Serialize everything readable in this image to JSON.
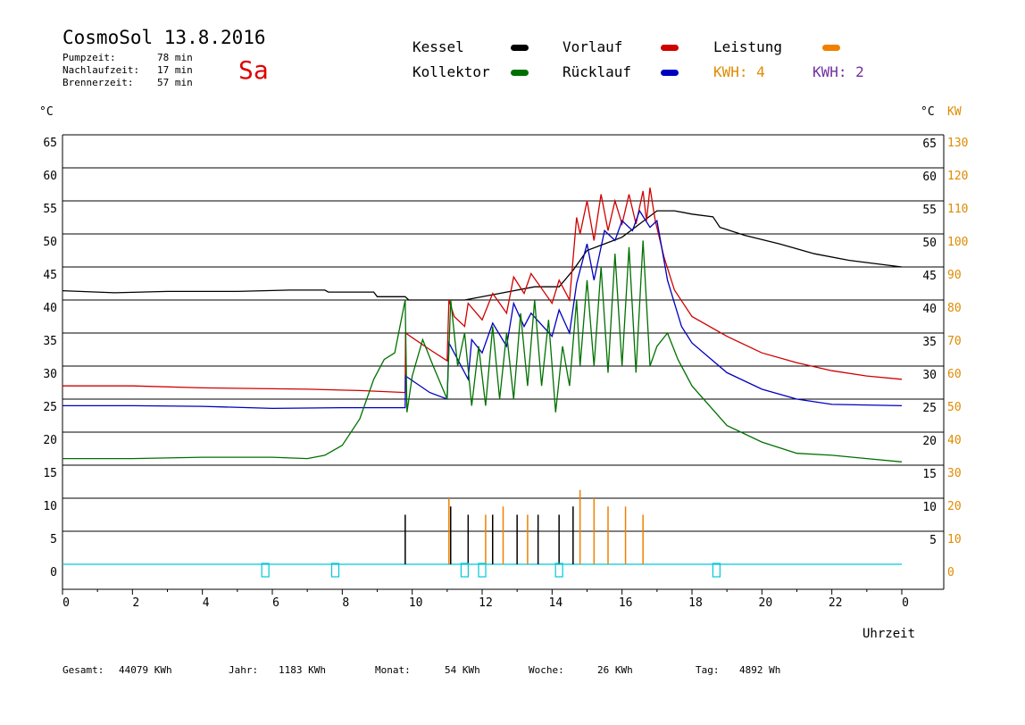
{
  "header": {
    "title": "CosmoSol 13.8.2016",
    "stats": [
      {
        "label": "Pumpzeit:",
        "value": "78 min"
      },
      {
        "label": "Nachlaufzeit:",
        "value": "17 min"
      },
      {
        "label": "Brennerzeit:",
        "value": "57 min"
      }
    ],
    "day": "Sa"
  },
  "legend": {
    "kessel": "Kessel",
    "vorlauf": "Vorlauf",
    "leistung": "Leistung",
    "kollektor": "Kollektor",
    "ruecklauf": "Rücklauf",
    "kwh_orange": "KWH: 4",
    "kwh_purple": "KWH: 2"
  },
  "colors": {
    "kessel": "#000000",
    "vorlauf": "#d00000",
    "leistung": "#f08000",
    "kollektor": "#007000",
    "ruecklauf": "#0000c0",
    "kwh_orange": "#e08a00",
    "kwh_purple": "#7030a0",
    "pump_markers": "#00c8d8"
  },
  "footer": [
    {
      "label": "Gesamt:",
      "value": "44079 KWh"
    },
    {
      "label": "Jahr:",
      "value": "1183 KWh"
    },
    {
      "label": "Monat:",
      "value": "54 KWh"
    },
    {
      "label": "Woche:",
      "value": "26 KWh"
    },
    {
      "label": "Tag:",
      "value": "4892 Wh"
    }
  ],
  "chart_data": {
    "type": "line",
    "title": "CosmoSol 13.8.2016",
    "xlabel": "Uhrzeit",
    "ylabel_left": "°C",
    "ylabel_right_temp": "°C",
    "ylabel_right_power": "KW",
    "xlim": [
      0,
      24
    ],
    "ylim": [
      0,
      65
    ],
    "x_ticks": [
      "0",
      "2",
      "4",
      "6",
      "8",
      "10",
      "12",
      "14",
      "16",
      "18",
      "20",
      "22",
      "0"
    ],
    "y_ticks_left": [
      "0",
      "5",
      "10",
      "15",
      "20",
      "25",
      "30",
      "35",
      "40",
      "45",
      "50",
      "55",
      "60",
      "65"
    ],
    "y_ticks_right_temp": [
      "5",
      "10",
      "15",
      "20",
      "25",
      "30",
      "35",
      "40",
      "45",
      "50",
      "55",
      "60",
      "65"
    ],
    "y_ticks_right_power": [
      "0",
      "10",
      "20",
      "30",
      "40",
      "50",
      "60",
      "70",
      "80",
      "90",
      "100",
      "110",
      "120",
      "130"
    ],
    "grid": true,
    "legend_position": "top",
    "series": [
      {
        "name": "Kessel",
        "color": "#000000",
        "points": [
          [
            0,
            41.4
          ],
          [
            1.5,
            41.1
          ],
          [
            3,
            41.3
          ],
          [
            5,
            41.3
          ],
          [
            6.5,
            41.5
          ],
          [
            7.5,
            41.5
          ],
          [
            7.6,
            41.2
          ],
          [
            8.9,
            41.2
          ],
          [
            9,
            40.5
          ],
          [
            9.8,
            40.5
          ],
          [
            9.9,
            40.0
          ],
          [
            11.5,
            40.0
          ],
          [
            12.5,
            41.0
          ],
          [
            13.5,
            42.0
          ],
          [
            14.2,
            42.0
          ],
          [
            14.6,
            44.5
          ],
          [
            15,
            47.5
          ],
          [
            15.5,
            48.5
          ],
          [
            16,
            49.5
          ],
          [
            16.5,
            51.5
          ],
          [
            17,
            53.5
          ],
          [
            17.5,
            53.5
          ],
          [
            18,
            53.0
          ],
          [
            18.6,
            52.6
          ],
          [
            18.8,
            51.0
          ],
          [
            19.5,
            49.8
          ],
          [
            20.5,
            48.5
          ],
          [
            21.5,
            47.0
          ],
          [
            22.5,
            46.0
          ],
          [
            24,
            45.0
          ]
        ]
      },
      {
        "name": "Vorlauf",
        "color": "#d00000",
        "points": [
          [
            0,
            27.0
          ],
          [
            2,
            27.0
          ],
          [
            4,
            26.7
          ],
          [
            7,
            26.5
          ],
          [
            8.5,
            26.3
          ],
          [
            9.8,
            26.0
          ],
          [
            9.81,
            35.0
          ],
          [
            10.5,
            32.5
          ],
          [
            11.0,
            30.8
          ],
          [
            11.05,
            40.0
          ],
          [
            11.2,
            37.5
          ],
          [
            11.5,
            36.0
          ],
          [
            11.6,
            39.5
          ],
          [
            12.0,
            37.0
          ],
          [
            12.3,
            41.0
          ],
          [
            12.7,
            38.0
          ],
          [
            12.9,
            43.5
          ],
          [
            13.2,
            41.0
          ],
          [
            13.4,
            44.0
          ],
          [
            14.0,
            39.5
          ],
          [
            14.2,
            43.0
          ],
          [
            14.5,
            40.0
          ],
          [
            14.7,
            52.5
          ],
          [
            14.8,
            50.0
          ],
          [
            15.0,
            55.0
          ],
          [
            15.2,
            49.0
          ],
          [
            15.4,
            56.0
          ],
          [
            15.6,
            50.5
          ],
          [
            15.8,
            55.0
          ],
          [
            16.0,
            51.5
          ],
          [
            16.2,
            56.0
          ],
          [
            16.4,
            51.5
          ],
          [
            16.6,
            56.5
          ],
          [
            16.7,
            52.0
          ],
          [
            16.8,
            57.0
          ],
          [
            16.95,
            52.0
          ],
          [
            17.2,
            46.5
          ],
          [
            17.5,
            41.5
          ],
          [
            18,
            37.5
          ],
          [
            19,
            34.5
          ],
          [
            20,
            32.0
          ],
          [
            21,
            30.5
          ],
          [
            22,
            29.3
          ],
          [
            23,
            28.5
          ],
          [
            24,
            28.0
          ]
        ]
      },
      {
        "name": "Rücklauf",
        "color": "#0000c0",
        "points": [
          [
            0,
            24.0
          ],
          [
            2,
            24.0
          ],
          [
            4,
            23.9
          ],
          [
            6,
            23.6
          ],
          [
            8,
            23.7
          ],
          [
            9.8,
            23.7
          ],
          [
            9.81,
            28.5
          ],
          [
            10.5,
            26.0
          ],
          [
            11.0,
            25.0
          ],
          [
            11.05,
            33.5
          ],
          [
            11.3,
            31.0
          ],
          [
            11.6,
            28.0
          ],
          [
            11.7,
            34.0
          ],
          [
            12.0,
            32.0
          ],
          [
            12.3,
            36.5
          ],
          [
            12.7,
            33.0
          ],
          [
            12.9,
            39.5
          ],
          [
            13.2,
            36.0
          ],
          [
            13.4,
            38.0
          ],
          [
            14.0,
            34.5
          ],
          [
            14.2,
            38.5
          ],
          [
            14.5,
            35.0
          ],
          [
            14.7,
            42.5
          ],
          [
            15.0,
            48.5
          ],
          [
            15.2,
            43.0
          ],
          [
            15.5,
            50.5
          ],
          [
            15.8,
            49.0
          ],
          [
            16.0,
            52.0
          ],
          [
            16.3,
            50.5
          ],
          [
            16.5,
            53.5
          ],
          [
            16.8,
            51.0
          ],
          [
            17.0,
            52.0
          ],
          [
            17.3,
            43.0
          ],
          [
            17.7,
            36.0
          ],
          [
            18,
            33.5
          ],
          [
            19,
            29.0
          ],
          [
            20,
            26.5
          ],
          [
            21,
            25.0
          ],
          [
            22,
            24.2
          ],
          [
            24,
            24.0
          ]
        ]
      },
      {
        "name": "Kollektor",
        "color": "#007000",
        "points": [
          [
            0,
            16.0
          ],
          [
            2,
            16.0
          ],
          [
            4,
            16.2
          ],
          [
            6,
            16.2
          ],
          [
            7,
            16.0
          ],
          [
            7.5,
            16.5
          ],
          [
            8,
            18.0
          ],
          [
            8.5,
            22.0
          ],
          [
            8.9,
            28.0
          ],
          [
            9.2,
            31.0
          ],
          [
            9.5,
            32.0
          ],
          [
            9.8,
            40.0
          ],
          [
            9.85,
            23.0
          ],
          [
            10.0,
            28.5
          ],
          [
            10.3,
            34.0
          ],
          [
            10.6,
            30.0
          ],
          [
            11.0,
            25.0
          ],
          [
            11.1,
            40.0
          ],
          [
            11.3,
            30.0
          ],
          [
            11.5,
            35.0
          ],
          [
            11.7,
            24.0
          ],
          [
            11.9,
            33.0
          ],
          [
            12.1,
            24.0
          ],
          [
            12.3,
            36.0
          ],
          [
            12.5,
            25.0
          ],
          [
            12.7,
            35.0
          ],
          [
            12.9,
            25.0
          ],
          [
            13.1,
            38.0
          ],
          [
            13.3,
            27.0
          ],
          [
            13.5,
            40.0
          ],
          [
            13.7,
            27.0
          ],
          [
            13.9,
            37.0
          ],
          [
            14.1,
            23.0
          ],
          [
            14.3,
            33.0
          ],
          [
            14.5,
            27.0
          ],
          [
            14.7,
            40.0
          ],
          [
            14.8,
            30.0
          ],
          [
            15.0,
            43.0
          ],
          [
            15.2,
            30.0
          ],
          [
            15.4,
            45.0
          ],
          [
            15.6,
            29.0
          ],
          [
            15.8,
            47.0
          ],
          [
            16.0,
            30.0
          ],
          [
            16.2,
            48.0
          ],
          [
            16.4,
            29.0
          ],
          [
            16.6,
            49.0
          ],
          [
            16.8,
            30.0
          ],
          [
            17.0,
            33.0
          ],
          [
            17.3,
            35.0
          ],
          [
            17.6,
            31.0
          ],
          [
            18,
            27.0
          ],
          [
            18.5,
            24.0
          ],
          [
            19,
            21.0
          ],
          [
            20,
            18.5
          ],
          [
            21,
            16.8
          ],
          [
            22,
            16.5
          ],
          [
            23,
            16.0
          ],
          [
            24,
            15.5
          ]
        ]
      }
    ],
    "power_spikes_kw": {
      "orange": [
        [
          11.05,
          8
        ],
        [
          12.1,
          6
        ],
        [
          12.6,
          7
        ],
        [
          13.3,
          6
        ],
        [
          14.8,
          9
        ],
        [
          15.2,
          8
        ],
        [
          15.6,
          7
        ],
        [
          16.1,
          7
        ],
        [
          16.6,
          6
        ]
      ],
      "black": [
        [
          9.8,
          6
        ],
        [
          11.1,
          7
        ],
        [
          11.6,
          6
        ],
        [
          12.3,
          6
        ],
        [
          13.0,
          6
        ],
        [
          13.6,
          6
        ],
        [
          14.2,
          6
        ],
        [
          14.6,
          7
        ]
      ]
    },
    "pump_markers_hours": [
      5.8,
      7.8,
      11.5,
      12.0,
      14.2,
      18.7
    ]
  }
}
